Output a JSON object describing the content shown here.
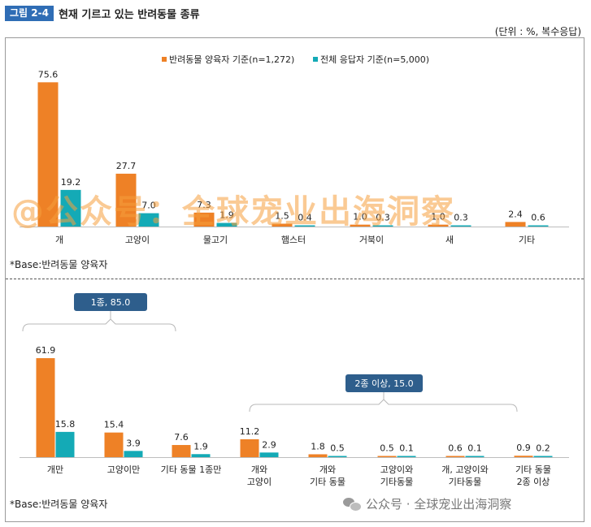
{
  "figure": {
    "badge": "그림 2-4",
    "title": "현재 기르고 있는 반려동물 종류",
    "units": "(단위 : %, 복수응답)"
  },
  "colors": {
    "orange": "#ee8126",
    "teal": "#14aab6",
    "bracket_fill": "#2e5e8c",
    "baseline": "#bdbdbd"
  },
  "chart_data": [
    {
      "type": "bar",
      "title": "현재 기르고 있는 반려동물 종류",
      "legend": [
        "반려동물 양육자 기준(n=1,272)",
        "전체 응답자 기준(n=5,000)"
      ],
      "categories": [
        "개",
        "고양이",
        "물고기",
        "햄스터",
        "거북이",
        "새",
        "기타"
      ],
      "series": [
        {
          "name": "반려동물 양육자 기준(n=1,272)",
          "values": [
            75.6,
            27.7,
            7.3,
            1.5,
            1.0,
            1.0,
            2.4
          ]
        },
        {
          "name": "전체 응답자 기준(n=5,000)",
          "values": [
            19.2,
            7.0,
            1.9,
            0.4,
            0.3,
            0.3,
            0.6
          ]
        }
      ],
      "value_labels": [
        [
          "75.6",
          "27.7",
          "7.3",
          "1.5",
          "1.0",
          "1.0",
          "2.4"
        ],
        [
          "19.2",
          "7.0",
          "1.9",
          "0.4",
          "0.3",
          "0.3",
          "0.6"
        ]
      ],
      "ylim": [
        0,
        80
      ],
      "note": "*Base:반려동물 양육자"
    },
    {
      "type": "bar",
      "categories": [
        [
          "개만"
        ],
        [
          "고양이만"
        ],
        [
          "기타 동물 1종만"
        ],
        [
          "개와",
          "고양이"
        ],
        [
          "개와",
          "기타 동물"
        ],
        [
          "고양이와",
          "기타동물"
        ],
        [
          "개, 고양이와",
          "기타동물"
        ],
        [
          "기타 동물",
          "2종 이상"
        ]
      ],
      "series": [
        {
          "name": "반려동물 양육자 기준(n=1,272)",
          "values": [
            61.9,
            15.4,
            7.6,
            11.2,
            1.8,
            0.5,
            0.6,
            0.9
          ]
        },
        {
          "name": "전체 응답자 기준(n=5,000)",
          "values": [
            15.8,
            3.9,
            1.9,
            2.9,
            0.5,
            0.1,
            0.1,
            0.2
          ]
        }
      ],
      "value_labels": [
        [
          "61.9",
          "15.4",
          "7.6",
          "11.2",
          "1.8",
          "0.5",
          "0.6",
          "0.9"
        ],
        [
          "15.8",
          "3.9",
          "1.9",
          "2.9",
          "0.5",
          "0.1",
          "0.1",
          "0.2"
        ]
      ],
      "ylim": [
        0,
        80
      ],
      "groups": [
        {
          "label": "1종, 85.0",
          "from": 0,
          "to": 2
        },
        {
          "label": "2종 이상, 15.0",
          "from": 3,
          "to": 7
        }
      ],
      "note": "*Base:반려동물 양육자"
    }
  ],
  "watermark": {
    "overlay": "@公众号：全球宠业出海洞察",
    "footer": "公众号 · 全球宠业出海洞察"
  }
}
